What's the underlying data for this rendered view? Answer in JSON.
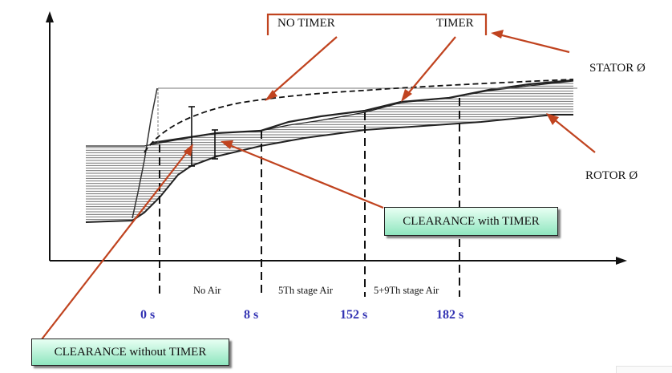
{
  "labels": {
    "no_timer": "NO TIMER",
    "timer": "TIMER",
    "stator": "STATOR Ø",
    "rotor": "ROTOR Ø",
    "clearance_with_timer": "CLEARANCE with TIMER",
    "clearance_without_timer": "CLEARANCE without TIMER"
  },
  "phases": [
    "No Air",
    "5Th stage Air",
    "5+9Th stage Air"
  ],
  "time_marks": [
    "0 s",
    "8 s",
    "152 s",
    "182 s"
  ],
  "colors": {
    "arrow": "#c0431f",
    "time_label": "#3333b3",
    "box_fill_top": "#e8fff3",
    "box_fill_bottom": "#8fe6bf",
    "line": "#111111"
  }
}
